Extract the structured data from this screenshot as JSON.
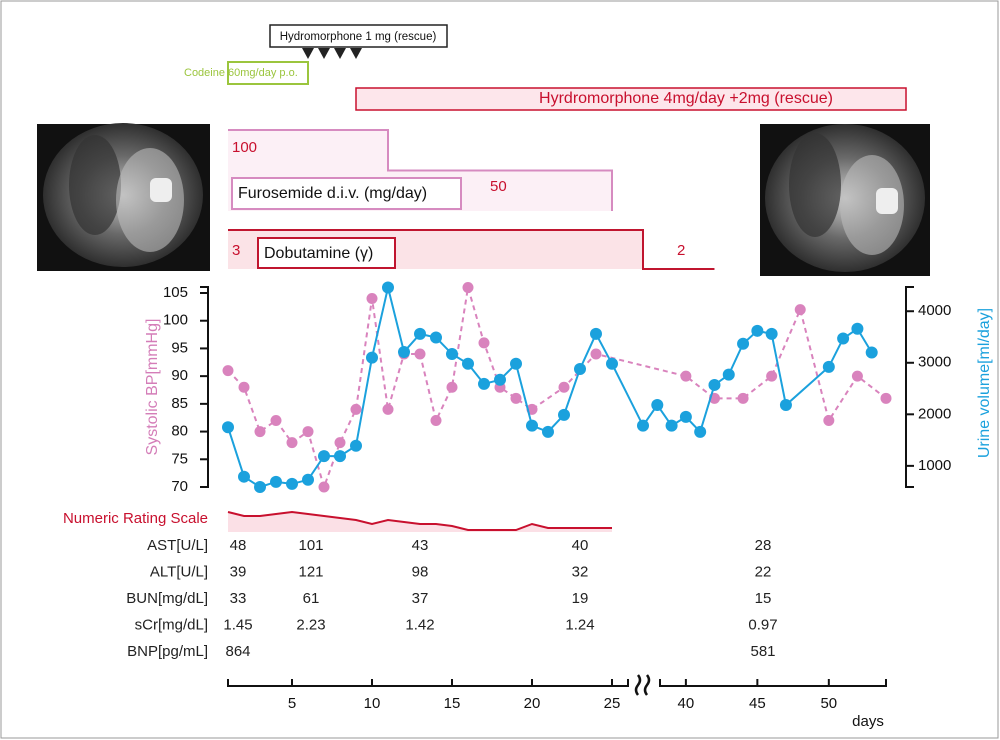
{
  "chart_data": {
    "type": "line",
    "xlabel": "days",
    "xlim_segments": [
      [
        1,
        26
      ],
      [
        37,
        54
      ]
    ],
    "xticks": [
      5,
      10,
      15,
      20,
      25,
      40,
      45,
      50
    ],
    "ylabel": "Systolic BP[mmHg]",
    "ylim": [
      70,
      105
    ],
    "yticks": [
      70,
      75,
      80,
      85,
      90,
      95,
      100,
      105
    ],
    "y2label": "Urine volume[ml/day]",
    "y2lim": [
      590,
      4470
    ],
    "y2ticks": [
      1000,
      2000,
      3000,
      4000
    ],
    "series": [
      {
        "color": "#d983bd",
        "dash": true,
        "x": [
          1,
          2,
          3,
          4,
          5,
          6,
          7,
          8,
          9,
          10,
          11,
          12,
          13,
          14,
          15,
          16,
          17,
          18,
          19,
          20,
          22,
          24,
          40,
          42,
          44,
          46,
          48,
          50,
          52,
          54
        ],
        "values": [
          91,
          88,
          80,
          82,
          78,
          80,
          70,
          78,
          84,
          104,
          84,
          94,
          94,
          82,
          88,
          106,
          96,
          88,
          86,
          84,
          88,
          94,
          90,
          86,
          86,
          90,
          102,
          82,
          90,
          86
        ]
      },
      {
        "color": "#1ba1dd",
        "axis": "y2",
        "x": [
          1,
          2,
          3,
          4,
          5,
          6,
          7,
          8,
          9,
          10,
          11,
          12,
          13,
          14,
          15,
          16,
          17,
          18,
          19,
          20,
          21,
          22,
          23,
          24,
          25,
          37,
          38,
          39,
          40,
          41,
          42,
          43,
          44,
          45,
          46,
          47,
          50,
          51,
          52,
          53
        ],
        "values": [
          1750,
          790,
          590,
          690,
          650,
          730,
          1190,
          1190,
          1390,
          3100,
          4460,
          3210,
          3560,
          3490,
          3170,
          2980,
          2590,
          2670,
          2980,
          1780,
          1660,
          1990,
          2880,
          3560,
          2980,
          1780,
          2180,
          1780,
          1950,
          1660,
          2570,
          2770,
          3370,
          3620,
          3560,
          2180,
          2920,
          3470,
          3660,
          3200
        ]
      }
    ]
  },
  "nrs": {
    "label": "Numeric Rating Scale",
    "color": "#c8102e",
    "ylim": [
      0,
      10
    ],
    "x": [
      1,
      2,
      3,
      4,
      5,
      6,
      7,
      8,
      9,
      10,
      11,
      12,
      13,
      14,
      15,
      16,
      17,
      18,
      19,
      20,
      21,
      22,
      23,
      24,
      25
    ],
    "values": [
      5,
      4,
      4,
      4.5,
      5,
      4.5,
      4,
      3.5,
      3,
      2,
      3,
      2.5,
      2,
      2,
      1.5,
      0.5,
      0.5,
      0.5,
      0.5,
      2,
      1,
      1,
      1,
      1,
      1
    ]
  },
  "treatments": {
    "hydromorphone_rescue": {
      "label": "Hydromorphone 1 mg (rescue)",
      "days": [
        6,
        7,
        8,
        9
      ]
    },
    "codeine": {
      "label": "Codeine 60mg/day p.o.",
      "days": [
        1,
        6
      ],
      "color": "#9bc53d"
    },
    "hydromorphone": {
      "label": "Hyrdromorphone 4mg/day +2mg (rescue)",
      "days": [
        9,
        55.4
      ],
      "color": "#c8102e"
    },
    "furosemide": {
      "label": "Furosemide d.i.v. (mg/day)",
      "color": "#d68bc0",
      "steps": [
        {
          "days": [
            1,
            11
          ],
          "value": 100
        },
        {
          "days": [
            11,
            25
          ],
          "value": 50
        }
      ]
    },
    "dobutamine": {
      "label": "Dobutamine (γ)",
      "color": "#c0152f",
      "steps": [
        {
          "days": [
            1,
            37
          ],
          "value": 3
        },
        {
          "days": [
            37,
            42
          ],
          "value": 2
        }
      ]
    }
  },
  "labs": {
    "rows": [
      {
        "label": "AST[U/L]",
        "values": [
          "48",
          "101",
          "43",
          "40",
          "28"
        ]
      },
      {
        "label": "ALT[U/L]",
        "values": [
          "39",
          "121",
          "98",
          "32",
          "22"
        ]
      },
      {
        "label": "BUN[mg/dL]",
        "values": [
          "33",
          "61",
          "37",
          "19",
          "15"
        ]
      },
      {
        "label": "sCr[mg/dL]",
        "values": [
          "1.45",
          "2.23",
          "1.42",
          "1.24",
          "0.97"
        ]
      },
      {
        "label": "BNP[pg/mL]",
        "values": [
          "864",
          null,
          null,
          null,
          "581"
        ]
      }
    ]
  }
}
